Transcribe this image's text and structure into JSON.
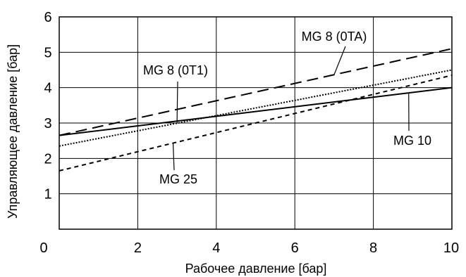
{
  "chart_data": {
    "type": "line",
    "xlabel": "Рабочее давление [бар]",
    "ylabel": "Управляющее давление [бар]",
    "xlim": [
      0,
      10
    ],
    "ylim": [
      0,
      6
    ],
    "x_ticks": [
      "0",
      "2",
      "4",
      "6",
      "8",
      "10"
    ],
    "y_ticks": [
      "1",
      "2",
      "3",
      "4",
      "5",
      "6"
    ],
    "grid": true,
    "series": [
      {
        "name": "MG 8 (0TA)",
        "style": "long-dash",
        "x": [
          0,
          10
        ],
        "y": [
          2.65,
          5.1
        ]
      },
      {
        "name": "MG 8 (0T1)",
        "style": "dotted",
        "x": [
          0,
          10
        ],
        "y": [
          2.35,
          4.5
        ]
      },
      {
        "name": "MG 10",
        "style": "solid",
        "x": [
          0,
          10
        ],
        "y": [
          2.65,
          4.0
        ]
      },
      {
        "name": "MG 25",
        "style": "short-dash",
        "x": [
          0,
          10
        ],
        "y": [
          1.65,
          4.35
        ]
      }
    ],
    "annotations": [
      {
        "text": "MG 8 (0TA)",
        "series": 0
      },
      {
        "text": "MG 8 (0T1)",
        "series": 1
      },
      {
        "text": "MG 10",
        "series": 2
      },
      {
        "text": "MG 25",
        "series": 3
      }
    ]
  }
}
